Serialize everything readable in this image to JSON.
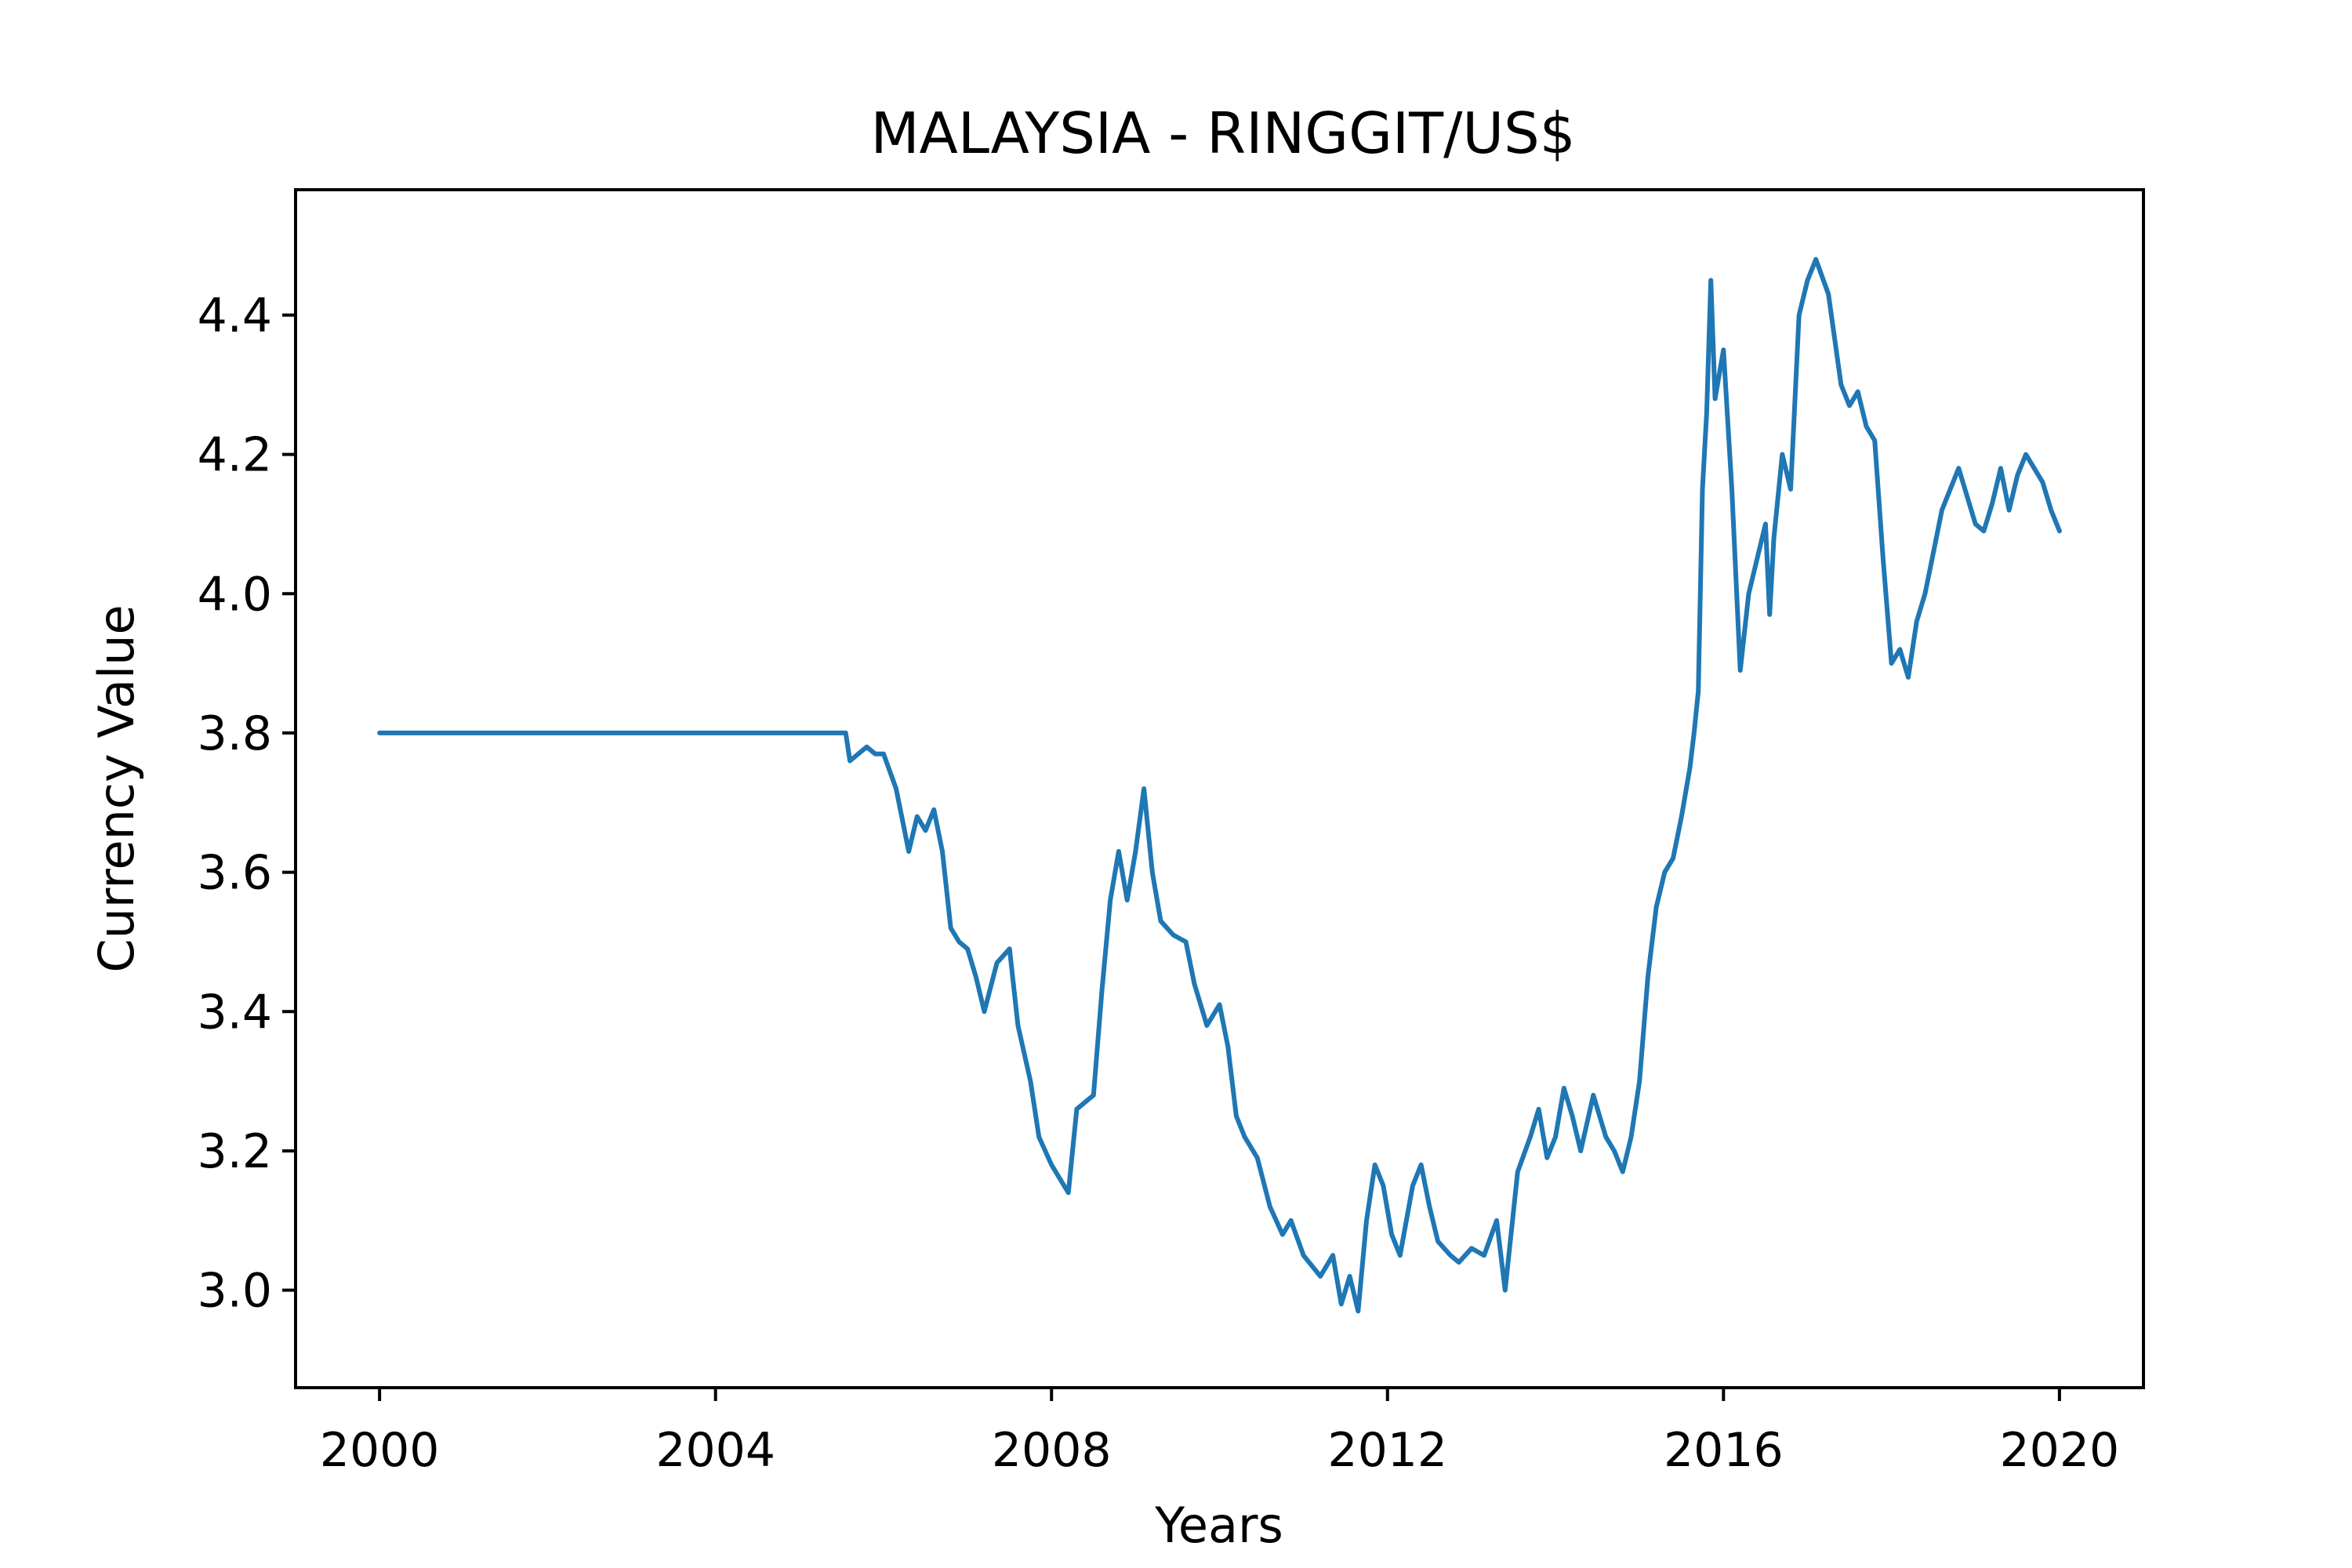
{
  "chart_data": {
    "type": "line",
    "title": "MALAYSIA - RINGGIT/US$",
    "xlabel": "Years",
    "ylabel": "Currency Value",
    "xlim": [
      1999.0,
      2021.0
    ],
    "ylim": [
      2.86,
      4.58
    ],
    "x_ticks": [
      2000,
      2004,
      2008,
      2012,
      2016,
      2020
    ],
    "x_tick_labels": [
      "2000",
      "2004",
      "2008",
      "2012",
      "2016",
      "2020"
    ],
    "y_ticks": [
      3.0,
      3.2,
      3.4,
      3.6,
      3.8,
      4.0,
      4.2,
      4.4
    ],
    "y_tick_labels": [
      "3.0",
      "3.2",
      "3.4",
      "3.6",
      "3.8",
      "4.0",
      "4.2",
      "4.4"
    ],
    "grid": false,
    "series": [
      {
        "color": "#1f77b4",
        "x": [
          2000.0,
          2005.55,
          2005.6,
          2005.7,
          2005.8,
          2005.9,
          2006.0,
          2006.15,
          2006.3,
          2006.4,
          2006.5,
          2006.6,
          2006.7,
          2006.8,
          2006.9,
          2007.0,
          2007.1,
          2007.2,
          2007.35,
          2007.5,
          2007.6,
          2007.75,
          2007.85,
          2008.0,
          2008.1,
          2008.2,
          2008.3,
          2008.4,
          2008.5,
          2008.6,
          2008.7,
          2008.8,
          2008.9,
          2009.0,
          2009.1,
          2009.2,
          2009.3,
          2009.45,
          2009.6,
          2009.7,
          2009.85,
          2010.0,
          2010.1,
          2010.2,
          2010.3,
          2010.45,
          2010.6,
          2010.75,
          2010.85,
          2011.0,
          2011.2,
          2011.35,
          2011.45,
          2011.55,
          2011.65,
          2011.75,
          2011.85,
          2011.95,
          2012.05,
          2012.15,
          2012.3,
          2012.4,
          2012.5,
          2012.6,
          2012.75,
          2012.85,
          2013.0,
          2013.15,
          2013.3,
          2013.4,
          2013.55,
          2013.7,
          2013.8,
          2013.9,
          2014.0,
          2014.1,
          2014.2,
          2014.3,
          2014.45,
          2014.6,
          2014.7,
          2014.8,
          2014.9,
          2015.0,
          2015.1,
          2015.2,
          2015.3,
          2015.4,
          2015.5,
          2015.6,
          2015.65,
          2015.7,
          2015.75,
          2015.8,
          2015.85,
          2015.9,
          2016.0,
          2016.1,
          2016.2,
          2016.3,
          2016.4,
          2016.5,
          2016.55,
          2016.6,
          2016.7,
          2016.8,
          2016.9,
          2017.0,
          2017.1,
          2017.25,
          2017.4,
          2017.5,
          2017.6,
          2017.7,
          2017.8,
          2017.9,
          2018.0,
          2018.1,
          2018.2,
          2018.3,
          2018.4,
          2018.5,
          2018.6,
          2018.7,
          2018.8,
          2018.9,
          2019.0,
          2019.1,
          2019.2,
          2019.3,
          2019.4,
          2019.5,
          2019.6,
          2019.7,
          2019.8,
          2019.9,
          2020.0
        ],
        "y": [
          3.8,
          3.8,
          3.76,
          3.77,
          3.78,
          3.77,
          3.77,
          3.72,
          3.63,
          3.68,
          3.66,
          3.69,
          3.63,
          3.52,
          3.5,
          3.49,
          3.45,
          3.4,
          3.47,
          3.49,
          3.38,
          3.3,
          3.22,
          3.18,
          3.16,
          3.14,
          3.26,
          3.27,
          3.28,
          3.43,
          3.56,
          3.63,
          3.56,
          3.63,
          3.72,
          3.6,
          3.53,
          3.51,
          3.5,
          3.44,
          3.38,
          3.41,
          3.35,
          3.25,
          3.22,
          3.19,
          3.12,
          3.08,
          3.1,
          3.05,
          3.02,
          3.05,
          2.98,
          3.02,
          2.97,
          3.1,
          3.18,
          3.15,
          3.08,
          3.05,
          3.15,
          3.18,
          3.12,
          3.07,
          3.05,
          3.04,
          3.06,
          3.05,
          3.1,
          3.0,
          3.17,
          3.22,
          3.26,
          3.19,
          3.22,
          3.29,
          3.25,
          3.2,
          3.28,
          3.22,
          3.2,
          3.17,
          3.22,
          3.3,
          3.45,
          3.55,
          3.6,
          3.62,
          3.68,
          3.75,
          3.8,
          3.86,
          4.15,
          4.26,
          4.45,
          4.28,
          4.35,
          4.15,
          3.89,
          4.0,
          4.05,
          4.1,
          3.97,
          4.08,
          4.2,
          4.15,
          4.4,
          4.45,
          4.48,
          4.43,
          4.3,
          4.27,
          4.29,
          4.24,
          4.22,
          4.05,
          3.9,
          3.92,
          3.88,
          3.96,
          4.0,
          4.06,
          4.12,
          4.15,
          4.18,
          4.14,
          4.1,
          4.09,
          4.13,
          4.18,
          4.12,
          4.17,
          4.2,
          4.18,
          4.16,
          4.12,
          4.09
        ]
      }
    ]
  }
}
